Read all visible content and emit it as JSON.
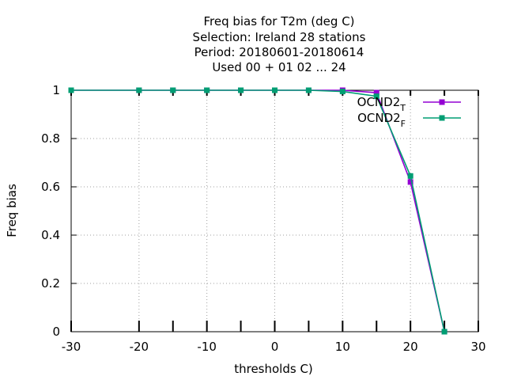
{
  "chart_data": {
    "type": "line",
    "title_lines": [
      "Freq bias  for T2m (deg C)",
      "Selection: Ireland     28 stations",
      "Period: 20180601-20180614",
      "Used  00 + 01 02 ... 24"
    ],
    "xlabel": "thresholds C)",
    "ylabel": "Freq bias",
    "xlim": [
      -30,
      30
    ],
    "ylim": [
      0,
      1
    ],
    "xticks": [
      -30,
      -20,
      -10,
      0,
      10,
      20,
      30
    ],
    "yticks": [
      0,
      0.2,
      0.4,
      0.6,
      0.8,
      1
    ],
    "x": [
      -30,
      -20,
      -15,
      -10,
      -5,
      0,
      5,
      10,
      15,
      20,
      25
    ],
    "grid": true,
    "legend_position": "top-right",
    "series": [
      {
        "name": "OCND2",
        "subscript": "T",
        "color": "#9400d3",
        "marker": "square",
        "values": [
          1.0,
          1.0,
          1.0,
          1.0,
          1.0,
          1.0,
          1.0,
          1.0,
          0.99,
          0.62,
          0.0
        ]
      },
      {
        "name": "OCND2",
        "subscript": "F",
        "color": "#009e73",
        "marker": "square",
        "values": [
          1.0,
          1.0,
          1.0,
          1.0,
          1.0,
          1.0,
          1.0,
          0.995,
          0.975,
          0.645,
          0.0
        ]
      }
    ]
  }
}
